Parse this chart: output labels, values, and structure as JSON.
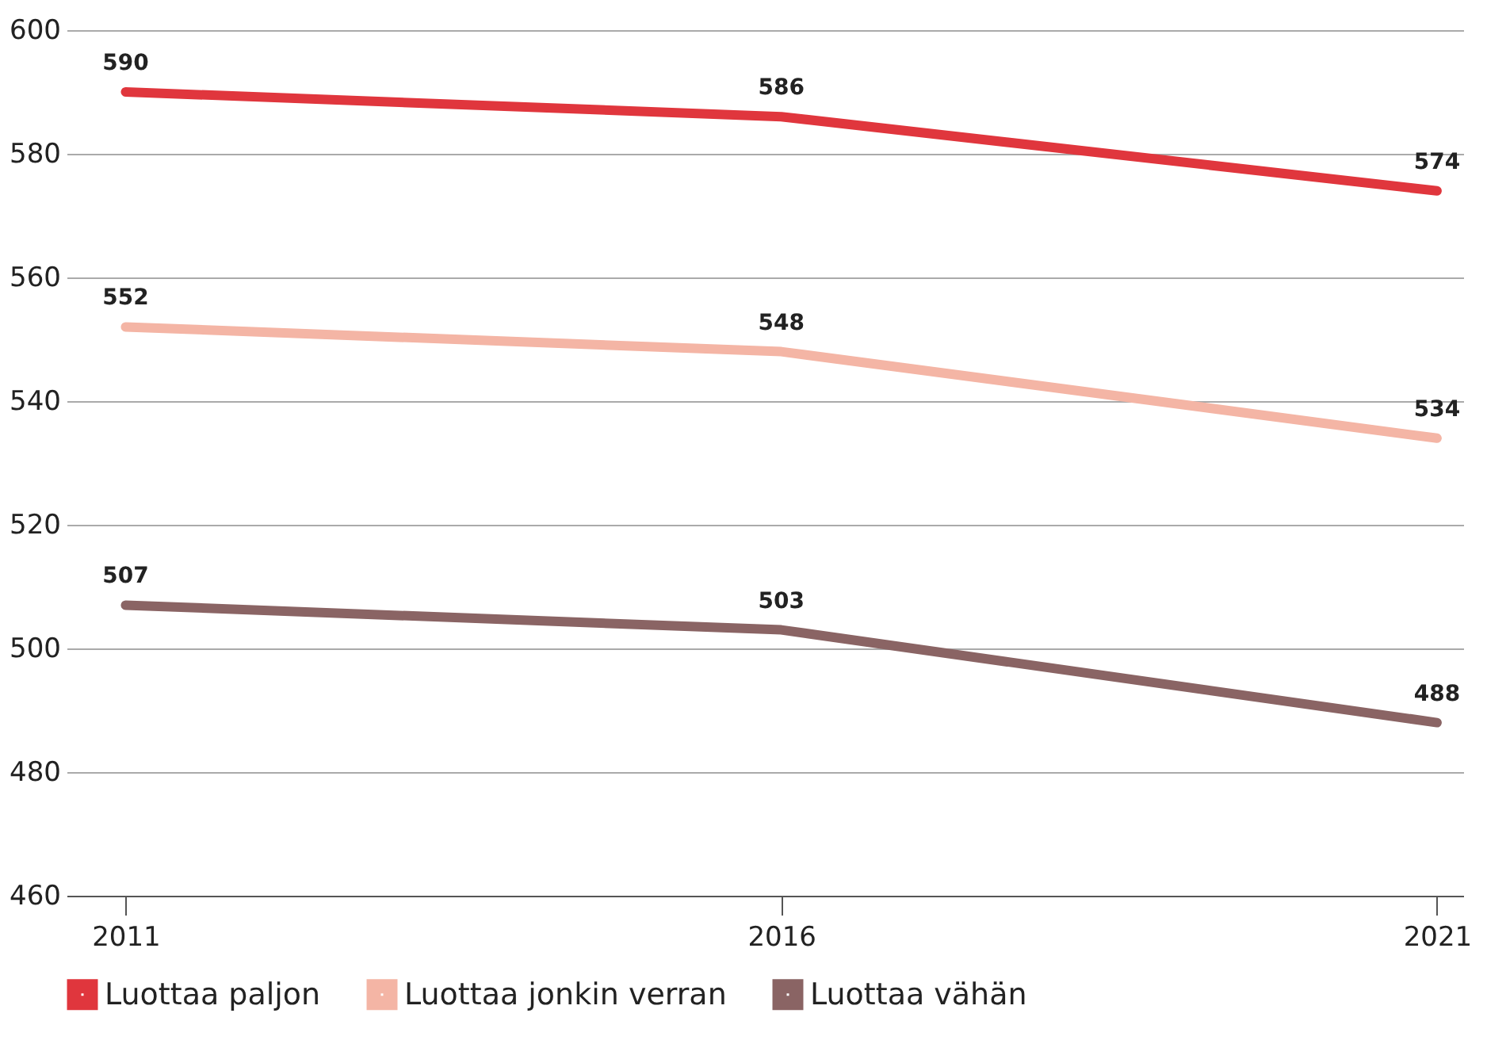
{
  "chart_data": {
    "type": "line",
    "categories": [
      "2011",
      "2016",
      "2021"
    ],
    "series": [
      {
        "name": "Luottaa paljon",
        "color": "#e0363d",
        "values": [
          590,
          586,
          574
        ]
      },
      {
        "name": "Luottaa jonkin verran",
        "color": "#f4b5a5",
        "values": [
          552,
          548,
          534
        ]
      },
      {
        "name": "Luottaa vähän",
        "color": "#8a6464",
        "values": [
          507,
          503,
          488
        ]
      }
    ],
    "ylim": [
      460,
      600
    ],
    "yticks": [
      460,
      480,
      500,
      520,
      540,
      560,
      580,
      600
    ],
    "grid": "y",
    "legend": "bottom",
    "data_labels": true,
    "marker": "none",
    "line_style": "solid"
  }
}
